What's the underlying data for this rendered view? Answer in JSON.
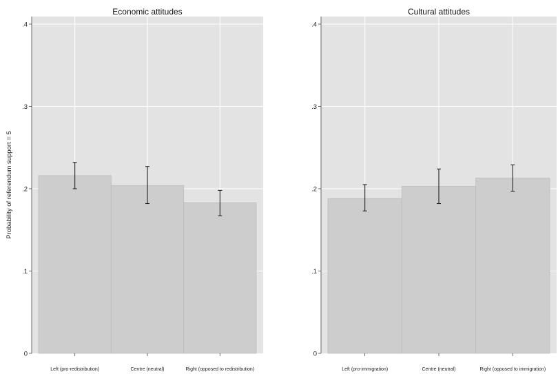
{
  "chart_data": [
    {
      "type": "bar",
      "title": "Economic attitudes",
      "ylabel": "Probability of referendum support = 5",
      "xlabel": "",
      "categories": [
        "Left (pro-redistribution)",
        "Centre (neutral)",
        "Right (opposed to redistribution)"
      ],
      "values": [
        0.216,
        0.204,
        0.183
      ],
      "ci_low": [
        0.2,
        0.182,
        0.167
      ],
      "ci_high": [
        0.232,
        0.227,
        0.198
      ],
      "ylim": [
        0,
        0.4
      ],
      "yticks": [
        0,
        0.1,
        0.2,
        0.3,
        0.4
      ],
      "ytick_labels": [
        "0",
        ".1",
        ".2",
        ".3",
        ".4"
      ],
      "grid": true,
      "legend": "none"
    },
    {
      "type": "bar",
      "title": "Cultural attitudes",
      "ylabel": "",
      "xlabel": "",
      "categories": [
        "Left (pro-immigration)",
        "Centre (neutral)",
        "Right (opposed to immigration)"
      ],
      "values": [
        0.188,
        0.203,
        0.213
      ],
      "ci_low": [
        0.173,
        0.182,
        0.197
      ],
      "ci_high": [
        0.205,
        0.224,
        0.229
      ],
      "ylim": [
        0,
        0.4
      ],
      "yticks": [
        0,
        0.1,
        0.2,
        0.3,
        0.4
      ],
      "ytick_labels": [
        "0",
        ".1",
        ".2",
        ".3",
        ".4"
      ],
      "grid": true,
      "legend": "none"
    }
  ],
  "colors": {
    "plot_bg": "#e3e3e3",
    "bar_fill": "#cdcdcd",
    "bar_stroke": "#bdbdbd",
    "grid": "#ffffff",
    "error_bar": "#222222",
    "axis": "#444444"
  }
}
